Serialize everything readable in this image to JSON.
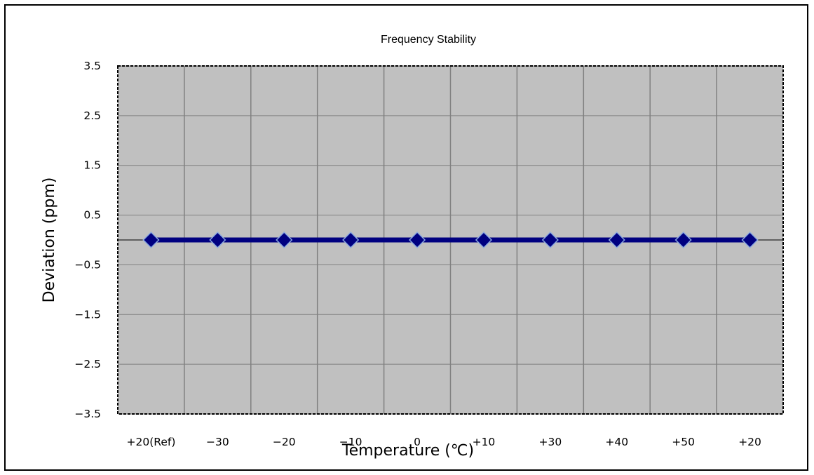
{
  "chart_data": {
    "type": "line",
    "title": "Frequency Stability",
    "xlabel": "Temperature (℃)",
    "ylabel": "Deviation (ppm)",
    "categories": [
      "+20(Ref)",
      "−30",
      "−20",
      "−10",
      "0",
      "+10",
      "+30",
      "+40",
      "+50",
      "+20"
    ],
    "series": [
      {
        "values": [
          0,
          0,
          0,
          0,
          0,
          0,
          0,
          0,
          0,
          0
        ]
      }
    ],
    "ylim": [
      -3.5,
      3.5
    ],
    "yticks": [
      3.5,
      2.5,
      1.5,
      0.5,
      -0.5,
      -1.5,
      -2.5,
      -3.5
    ],
    "ytick_labels": [
      "3.5",
      "2.5",
      "1.5",
      "0.5",
      "−0.5",
      "−1.5",
      "−2.5",
      "−3.5"
    ],
    "grid": true,
    "legend": "none",
    "colors": {
      "plot_background": "#c0c0c0",
      "gridline": "#808080",
      "line": "#000080",
      "marker": "#000080",
      "marker_edge": "#8aa8e0"
    }
  }
}
